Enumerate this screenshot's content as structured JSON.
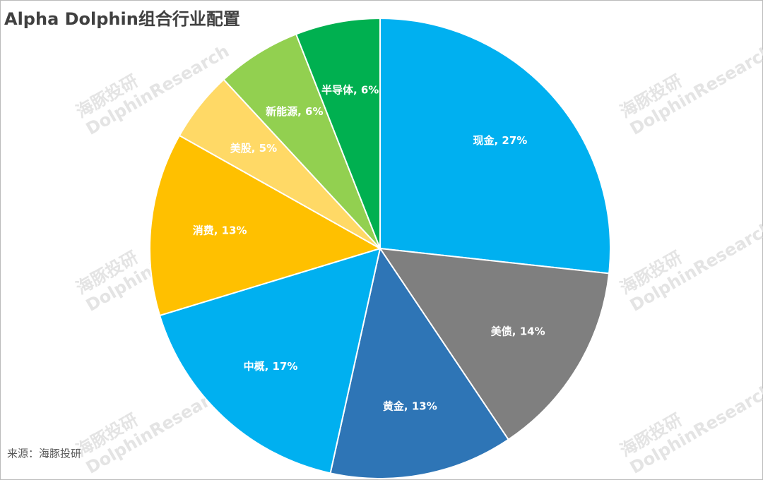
{
  "chart_data": {
    "type": "pie",
    "title": "Alpha Dolphin组合行业配置",
    "values": [
      27,
      14,
      13,
      17,
      13,
      5,
      6,
      6
    ],
    "value_labels": [
      "现金, 27%",
      "美债, 14%",
      "黄金, 13%",
      "中概, 17%",
      "消费, 13%",
      "美股, 5%",
      "新能源, 6%",
      "半导体, 6%"
    ],
    "colors": [
      "#00b0f0",
      "#7f7f7f",
      "#2e75b6",
      "#00b0f0",
      "#ffc000",
      "#ffd966",
      "#92d050",
      "#00b050"
    ],
    "source": "来源：海豚投研",
    "watermark": [
      "海豚投研",
      "DolphinResearch"
    ]
  }
}
